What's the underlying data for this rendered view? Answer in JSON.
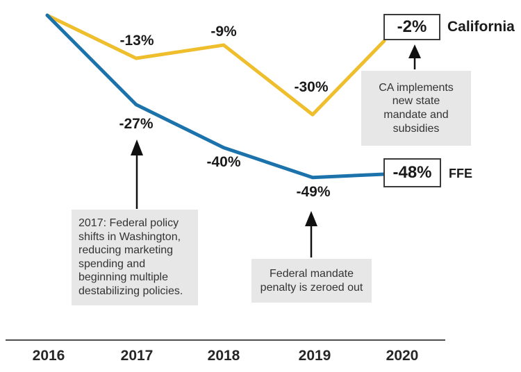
{
  "chart_data": {
    "type": "line",
    "title": "",
    "categories": [
      "2016",
      "2017",
      "2018",
      "2019",
      "2020"
    ],
    "series": [
      {
        "name": "California",
        "color": "#EFBE2D",
        "values": [
          0,
          -13,
          -9,
          -30,
          -2
        ],
        "point_labels": [
          "",
          "-13%",
          "-9%",
          "-30%",
          "-2%"
        ],
        "end_value_label": "-2%"
      },
      {
        "name": "FFE",
        "color": "#1C73AC",
        "values": [
          0,
          -27,
          -40,
          -49,
          -48
        ],
        "point_labels": [
          "",
          "-27%",
          "-40%",
          "-49%",
          "-48%"
        ],
        "end_value_label": "-48%"
      }
    ],
    "ylim": [
      -55,
      0
    ],
    "grid": false,
    "legend_position": "labels-at-line-ends",
    "annotations": [
      {
        "text": "2017: Federal policy\nshifts in Washington,\nreducing marketing\nspending and\nbeginning multiple\ndestabilizing policies.",
        "points_to": "-27%"
      },
      {
        "text": "Federal mandate\npenalty is zeroed out",
        "points_to": "-49%"
      },
      {
        "text": "CA implements\nnew state\nmandate and\nsubsidies",
        "points_to": "-2%"
      }
    ]
  },
  "colors": {
    "california_line": "#EFBE2D",
    "ffe_line": "#1C73AC",
    "annotation_background": "#E7E7E7",
    "axis": "#4D4D4D",
    "arrow": "#111111",
    "text": "#1A1A1A"
  }
}
